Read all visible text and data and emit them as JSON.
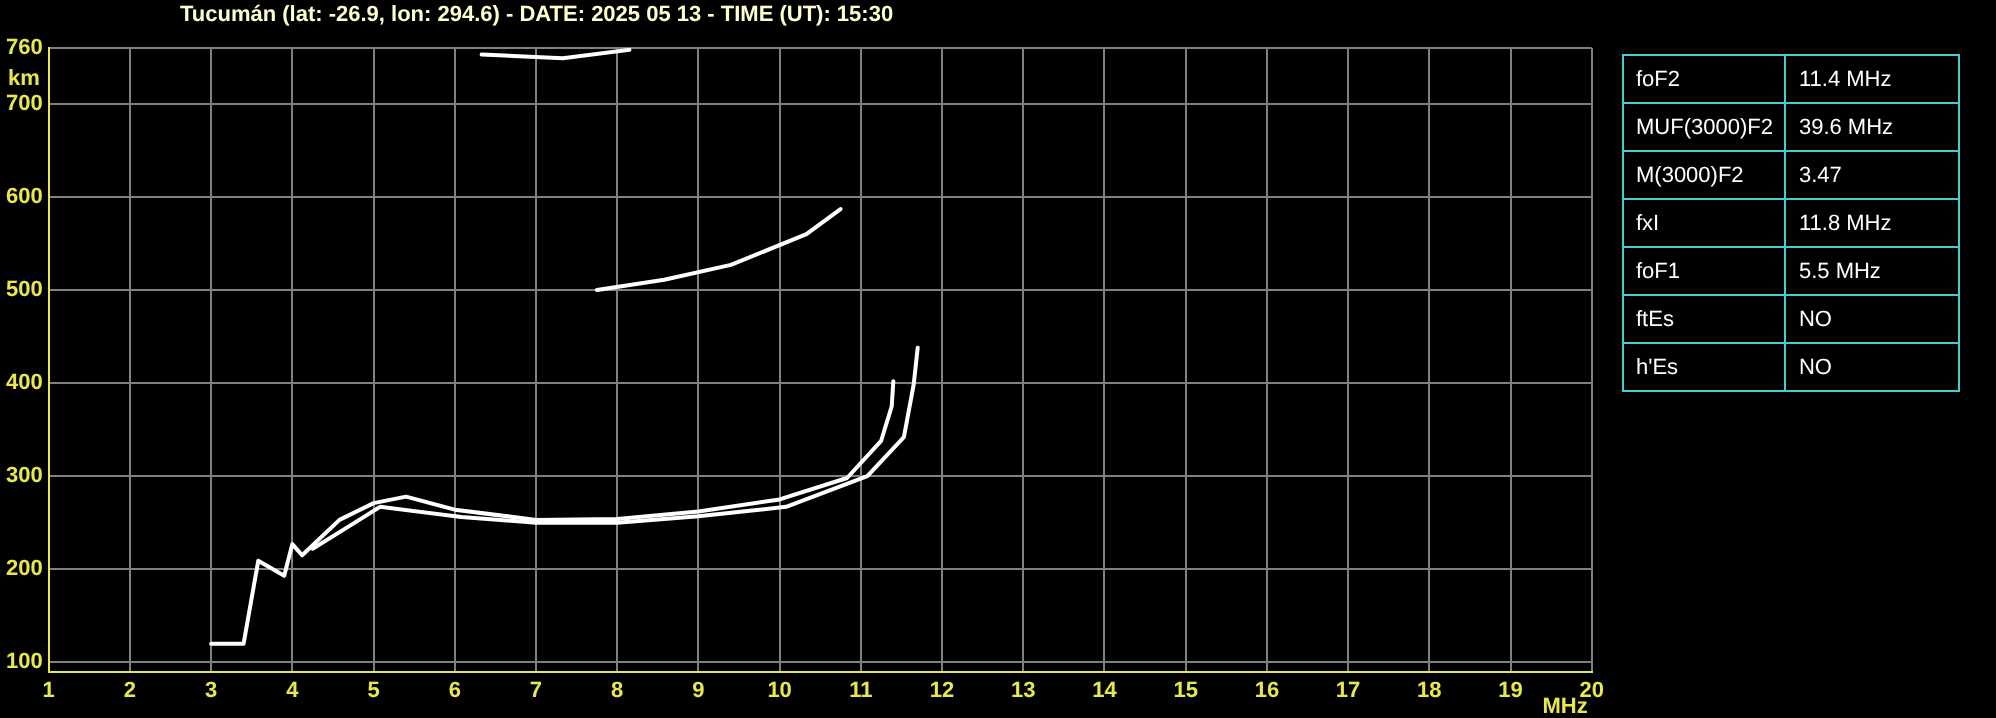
{
  "chart_data": {
    "type": "line",
    "title": "Tucumán (lat: -26.9, lon: 294.6) - DATE: 2025 05 13 - TIME (UT): 15:30",
    "xlabel": "MHz",
    "ylabel": "km",
    "xlim": [
      1,
      20
    ],
    "xticks": [
      1,
      2,
      3,
      4,
      5,
      6,
      7,
      8,
      9,
      10,
      11,
      12,
      13,
      14,
      15,
      16,
      17,
      18,
      19,
      20
    ],
    "ylim": [
      90,
      760
    ],
    "yticks": [
      100,
      200,
      300,
      400,
      500,
      600,
      700,
      760
    ],
    "grid": true,
    "legend": false,
    "marker": "none",
    "line_style": "solid",
    "series": [
      {
        "color": "#ffffff",
        "x": [
          3.0,
          3.4,
          3.58,
          3.9,
          4.0,
          4.12,
          4.58,
          5.0,
          5.4,
          6.0,
          7.0,
          8.0,
          9.0,
          10.0,
          10.83,
          11.25,
          11.38,
          11.4
        ],
        "values": [
          120,
          120,
          209,
          193,
          227,
          215,
          253,
          271,
          278,
          264,
          253,
          254,
          262,
          275,
          298,
          338,
          375,
          402
        ]
      },
      {
        "color": "#ffffff",
        "x": [
          4.25,
          4.75,
          5.08,
          6.08,
          7.0,
          8.0,
          9.0,
          10.08,
          11.08,
          11.53,
          11.65,
          11.7
        ],
        "values": [
          222,
          249,
          267,
          256,
          250,
          250,
          257,
          267,
          300,
          342,
          398,
          438
        ]
      },
      {
        "color": "#ffffff",
        "x": [
          7.75,
          8.58,
          9.4,
          10.33,
          10.75
        ],
        "values": [
          500,
          511,
          527,
          560,
          587
        ]
      },
      {
        "color": "#ffffff",
        "x": [
          6.33,
          7.33,
          8.15
        ],
        "values": [
          753,
          749,
          758
        ]
      }
    ],
    "annotations": [
      "foF2",
      "11.4 MHz",
      "MUF(3000)F2",
      "39.6 MHz",
      "M(3000)F2",
      "3.47",
      "fxI",
      "11.8 MHz",
      "foF1",
      "5.5 MHz",
      "ftEs",
      "NO",
      "h'Es",
      "NO"
    ]
  }
}
